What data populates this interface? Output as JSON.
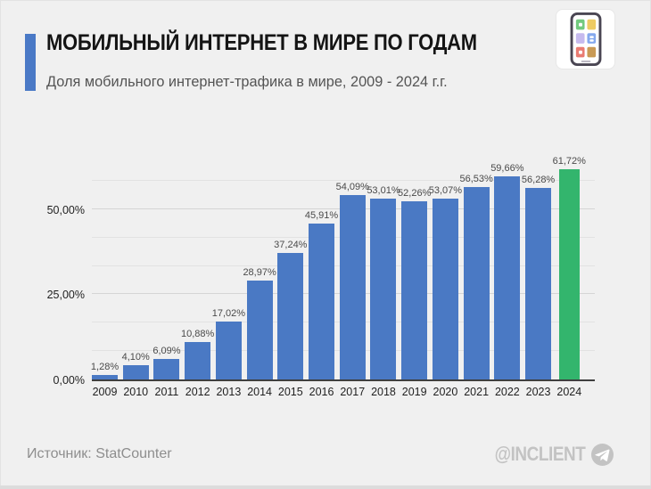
{
  "header": {
    "title": "МОБИЛЬНЫЙ ИНТЕРНЕТ В МИРЕ ПО ГОДАМ",
    "subtitle": "Доля мобильного интернет-трафика в мире, 2009 - 2024 г.г."
  },
  "footer": {
    "source": "Источник: StatCounter",
    "brand": "@INCLIENT"
  },
  "icons": {
    "header_icon": "smartphone-with-app-tiles-icon",
    "brand_icon": "telegram-paper-plane-icon"
  },
  "colors": {
    "background": "#f0f0f0",
    "accent": "#4a79c6",
    "bar_default": "#4a79c4",
    "bar_highlight": "#33b56d",
    "brand": "#c3c3c3",
    "axis": "#3f3f3f"
  },
  "chart_data": {
    "type": "bar",
    "title": "МОБИЛЬНЫЙ ИНТЕРНЕТ В МИРЕ ПО ГОДАМ",
    "subtitle": "Доля мобильного интернет-трафика в мире, 2009 - 2024 г.г.",
    "xlabel": "",
    "ylabel": "",
    "categories": [
      "2009",
      "2010",
      "2011",
      "2012",
      "2013",
      "2014",
      "2015",
      "2016",
      "2017",
      "2018",
      "2019",
      "2020",
      "2021",
      "2022",
      "2023",
      "2024"
    ],
    "values": [
      1.28,
      4.1,
      6.09,
      10.88,
      17.02,
      28.97,
      37.24,
      45.91,
      54.09,
      53.01,
      52.26,
      53.07,
      56.53,
      59.66,
      56.28,
      61.72
    ],
    "value_labels": [
      "1,28%",
      "4,10%",
      "6,09%",
      "10,88%",
      "17,02%",
      "28,97%",
      "37,24%",
      "45,91%",
      "54,09%",
      "53,01%",
      "52,26%",
      "53,07%",
      "56,53%",
      "59,66%",
      "56,28%",
      "61,72%"
    ],
    "highlight_index": 15,
    "bar_color_default": "#4a79c4",
    "bar_color_highlight": "#33b56d",
    "yticks": [
      {
        "label": "0,00%",
        "value": 0
      },
      {
        "label": "25,00%",
        "value": 25
      },
      {
        "label": "50,00%",
        "value": 50
      }
    ],
    "gridlines": {
      "major": [
        25,
        50
      ],
      "minor": [
        8.33,
        16.67,
        33.33,
        41.67,
        58.33
      ]
    },
    "ylim": [
      0,
      68.8
    ],
    "grid": true,
    "legend": "none"
  }
}
